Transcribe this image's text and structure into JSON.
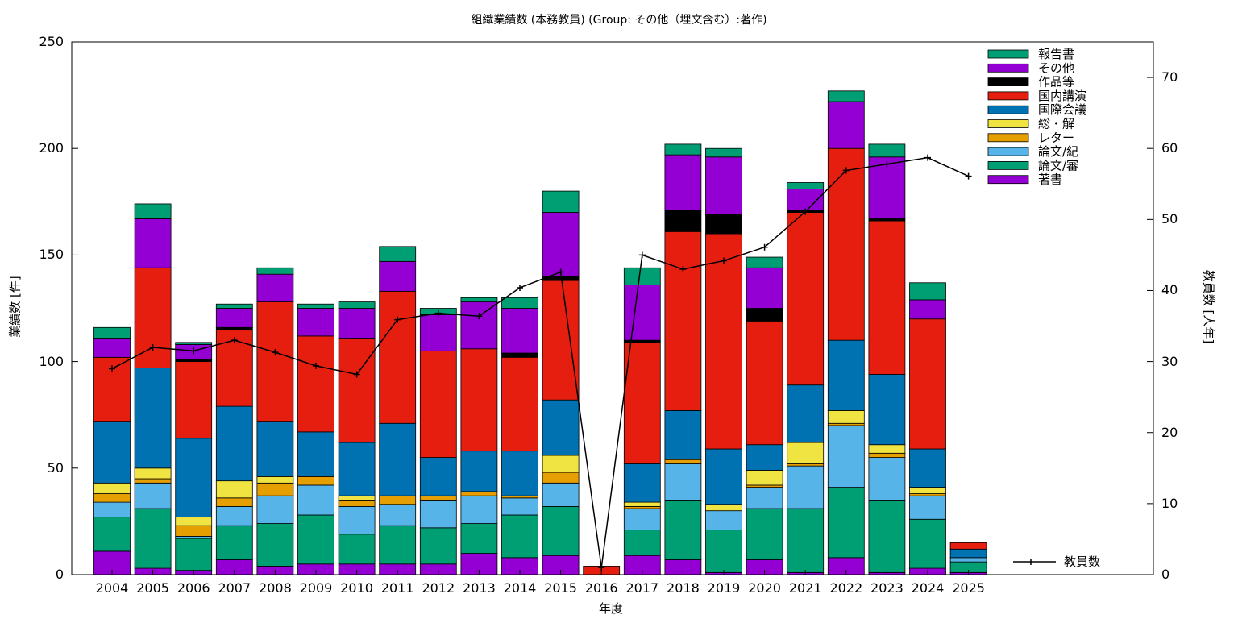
{
  "chart_data": {
    "type": "bar",
    "stacked": true,
    "title": "組織業績数 (本務教員) (Group: その他（埋文含む）:著作)",
    "xlabel": "年度",
    "ylabel": "業績数 [件]",
    "y2label": "教員数 [人年]",
    "ylim": [
      0,
      250
    ],
    "y2lim": [
      0,
      75
    ],
    "yticks": [
      0,
      50,
      100,
      150,
      200,
      250
    ],
    "y2ticks": [
      0,
      10,
      20,
      30,
      40,
      50,
      60,
      70
    ],
    "legend_position": "top-right",
    "grid": false,
    "categories": [
      "2004",
      "2005",
      "2006",
      "2007",
      "2008",
      "2009",
      "2010",
      "2011",
      "2012",
      "2013",
      "2014",
      "2015",
      "2016",
      "2017",
      "2018",
      "2019",
      "2020",
      "2021",
      "2022",
      "2023",
      "2024",
      "2025"
    ],
    "series": [
      {
        "name": "著書",
        "color": "#9400d3",
        "values": [
          11,
          3,
          2,
          7,
          4,
          5,
          5,
          5,
          5,
          10,
          8,
          9,
          0,
          9,
          7,
          1,
          7,
          1,
          8,
          1,
          3,
          1
        ]
      },
      {
        "name": "論文/審",
        "color": "#009e73",
        "values": [
          16,
          28,
          15,
          16,
          20,
          23,
          14,
          18,
          17,
          14,
          20,
          23,
          0,
          12,
          28,
          20,
          24,
          30,
          33,
          34,
          23,
          5
        ]
      },
      {
        "name": "論文/紀",
        "color": "#56b4e9",
        "values": [
          7,
          12,
          1,
          9,
          13,
          14,
          13,
          10,
          13,
          13,
          8,
          11,
          0,
          10,
          17,
          9,
          10,
          20,
          29,
          20,
          11,
          2
        ]
      },
      {
        "name": "レター",
        "color": "#e69f00",
        "values": [
          4,
          2,
          5,
          4,
          6,
          4,
          3,
          4,
          2,
          2,
          1,
          5,
          0,
          1,
          2,
          0,
          1,
          1,
          1,
          2,
          1,
          0
        ]
      },
      {
        "name": "総・解",
        "color": "#f0e442",
        "values": [
          5,
          5,
          4,
          8,
          3,
          0,
          2,
          0,
          0,
          0,
          0,
          8,
          0,
          2,
          0,
          3,
          7,
          10,
          6,
          4,
          3,
          0
        ]
      },
      {
        "name": "国際会議",
        "color": "#0072b2",
        "values": [
          29,
          47,
          37,
          35,
          26,
          21,
          25,
          34,
          18,
          19,
          21,
          26,
          0,
          18,
          23,
          26,
          12,
          27,
          33,
          33,
          18,
          4
        ]
      },
      {
        "name": "国内講演",
        "color": "#e51e10",
        "values": [
          30,
          47,
          36,
          36,
          56,
          45,
          49,
          62,
          50,
          48,
          44,
          56,
          4,
          57,
          84,
          101,
          58,
          81,
          90,
          72,
          61,
          3
        ]
      },
      {
        "name": "作品等",
        "color": "#000000",
        "values": [
          0,
          0,
          1,
          1,
          0,
          0,
          0,
          0,
          0,
          0,
          2,
          2,
          0,
          1,
          10,
          9,
          6,
          1,
          0,
          1,
          0,
          0
        ]
      },
      {
        "name": "その他",
        "color": "#9400d3",
        "values": [
          9,
          23,
          7,
          9,
          13,
          13,
          14,
          14,
          17,
          22,
          21,
          30,
          0,
          26,
          26,
          27,
          19,
          10,
          22,
          29,
          9,
          0
        ]
      },
      {
        "name": "報告書",
        "color": "#009e73",
        "values": [
          5,
          7,
          1,
          2,
          3,
          2,
          3,
          7,
          3,
          2,
          5,
          10,
          0,
          8,
          5,
          4,
          5,
          3,
          5,
          6,
          8,
          0
        ]
      }
    ],
    "line_series": {
      "name": "教員数",
      "color": "#000000",
      "axis": "y2",
      "values": [
        29,
        32,
        31.5,
        33,
        31.3,
        29.4,
        28.2,
        35.9,
        36.8,
        36.4,
        40.4,
        42.6,
        1,
        45,
        43,
        44.2,
        46.1,
        51.1,
        56.9,
        57.8,
        58.7,
        56.1
      ]
    }
  }
}
